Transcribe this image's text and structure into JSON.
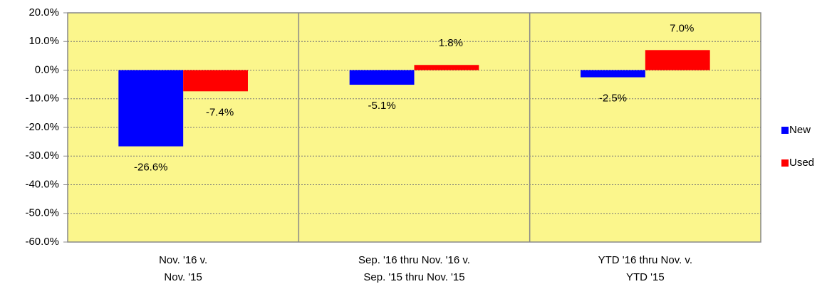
{
  "chart_data": {
    "type": "bar",
    "categories": [
      "Nov. '16 v.\nNov. '15",
      "Sep. '16 thru Nov. '16 v.\nSep. '15 thru Nov. '15",
      "YTD '16 thru Nov. v.\nYTD '15"
    ],
    "series": [
      {
        "name": "New",
        "color": "#0000ff",
        "values": [
          -26.6,
          -5.1,
          -2.5
        ],
        "value_labels": [
          "-26.6%",
          "-5.1%",
          "-2.5%"
        ]
      },
      {
        "name": "Used",
        "color": "#ff0000",
        "values": [
          -7.4,
          1.8,
          7.0
        ],
        "value_labels": [
          "-7.4%",
          "1.8%",
          "7.0%"
        ]
      }
    ],
    "ylim": [
      -60,
      20
    ],
    "yticks": [
      {
        "value": -60,
        "label": "-60.0%"
      },
      {
        "value": -50,
        "label": "-50.0%"
      },
      {
        "value": -40,
        "label": "-40.0%"
      },
      {
        "value": -30,
        "label": "-30.0%"
      },
      {
        "value": -20,
        "label": "-20.0%"
      },
      {
        "value": -10,
        "label": "-10.0%"
      },
      {
        "value": 0,
        "label": "0.0%"
      },
      {
        "value": 10,
        "label": "10.0%"
      },
      {
        "value": 20,
        "label": "20.0%"
      }
    ],
    "grid": true,
    "legend": "right",
    "plot_background": "#fbf68c"
  }
}
